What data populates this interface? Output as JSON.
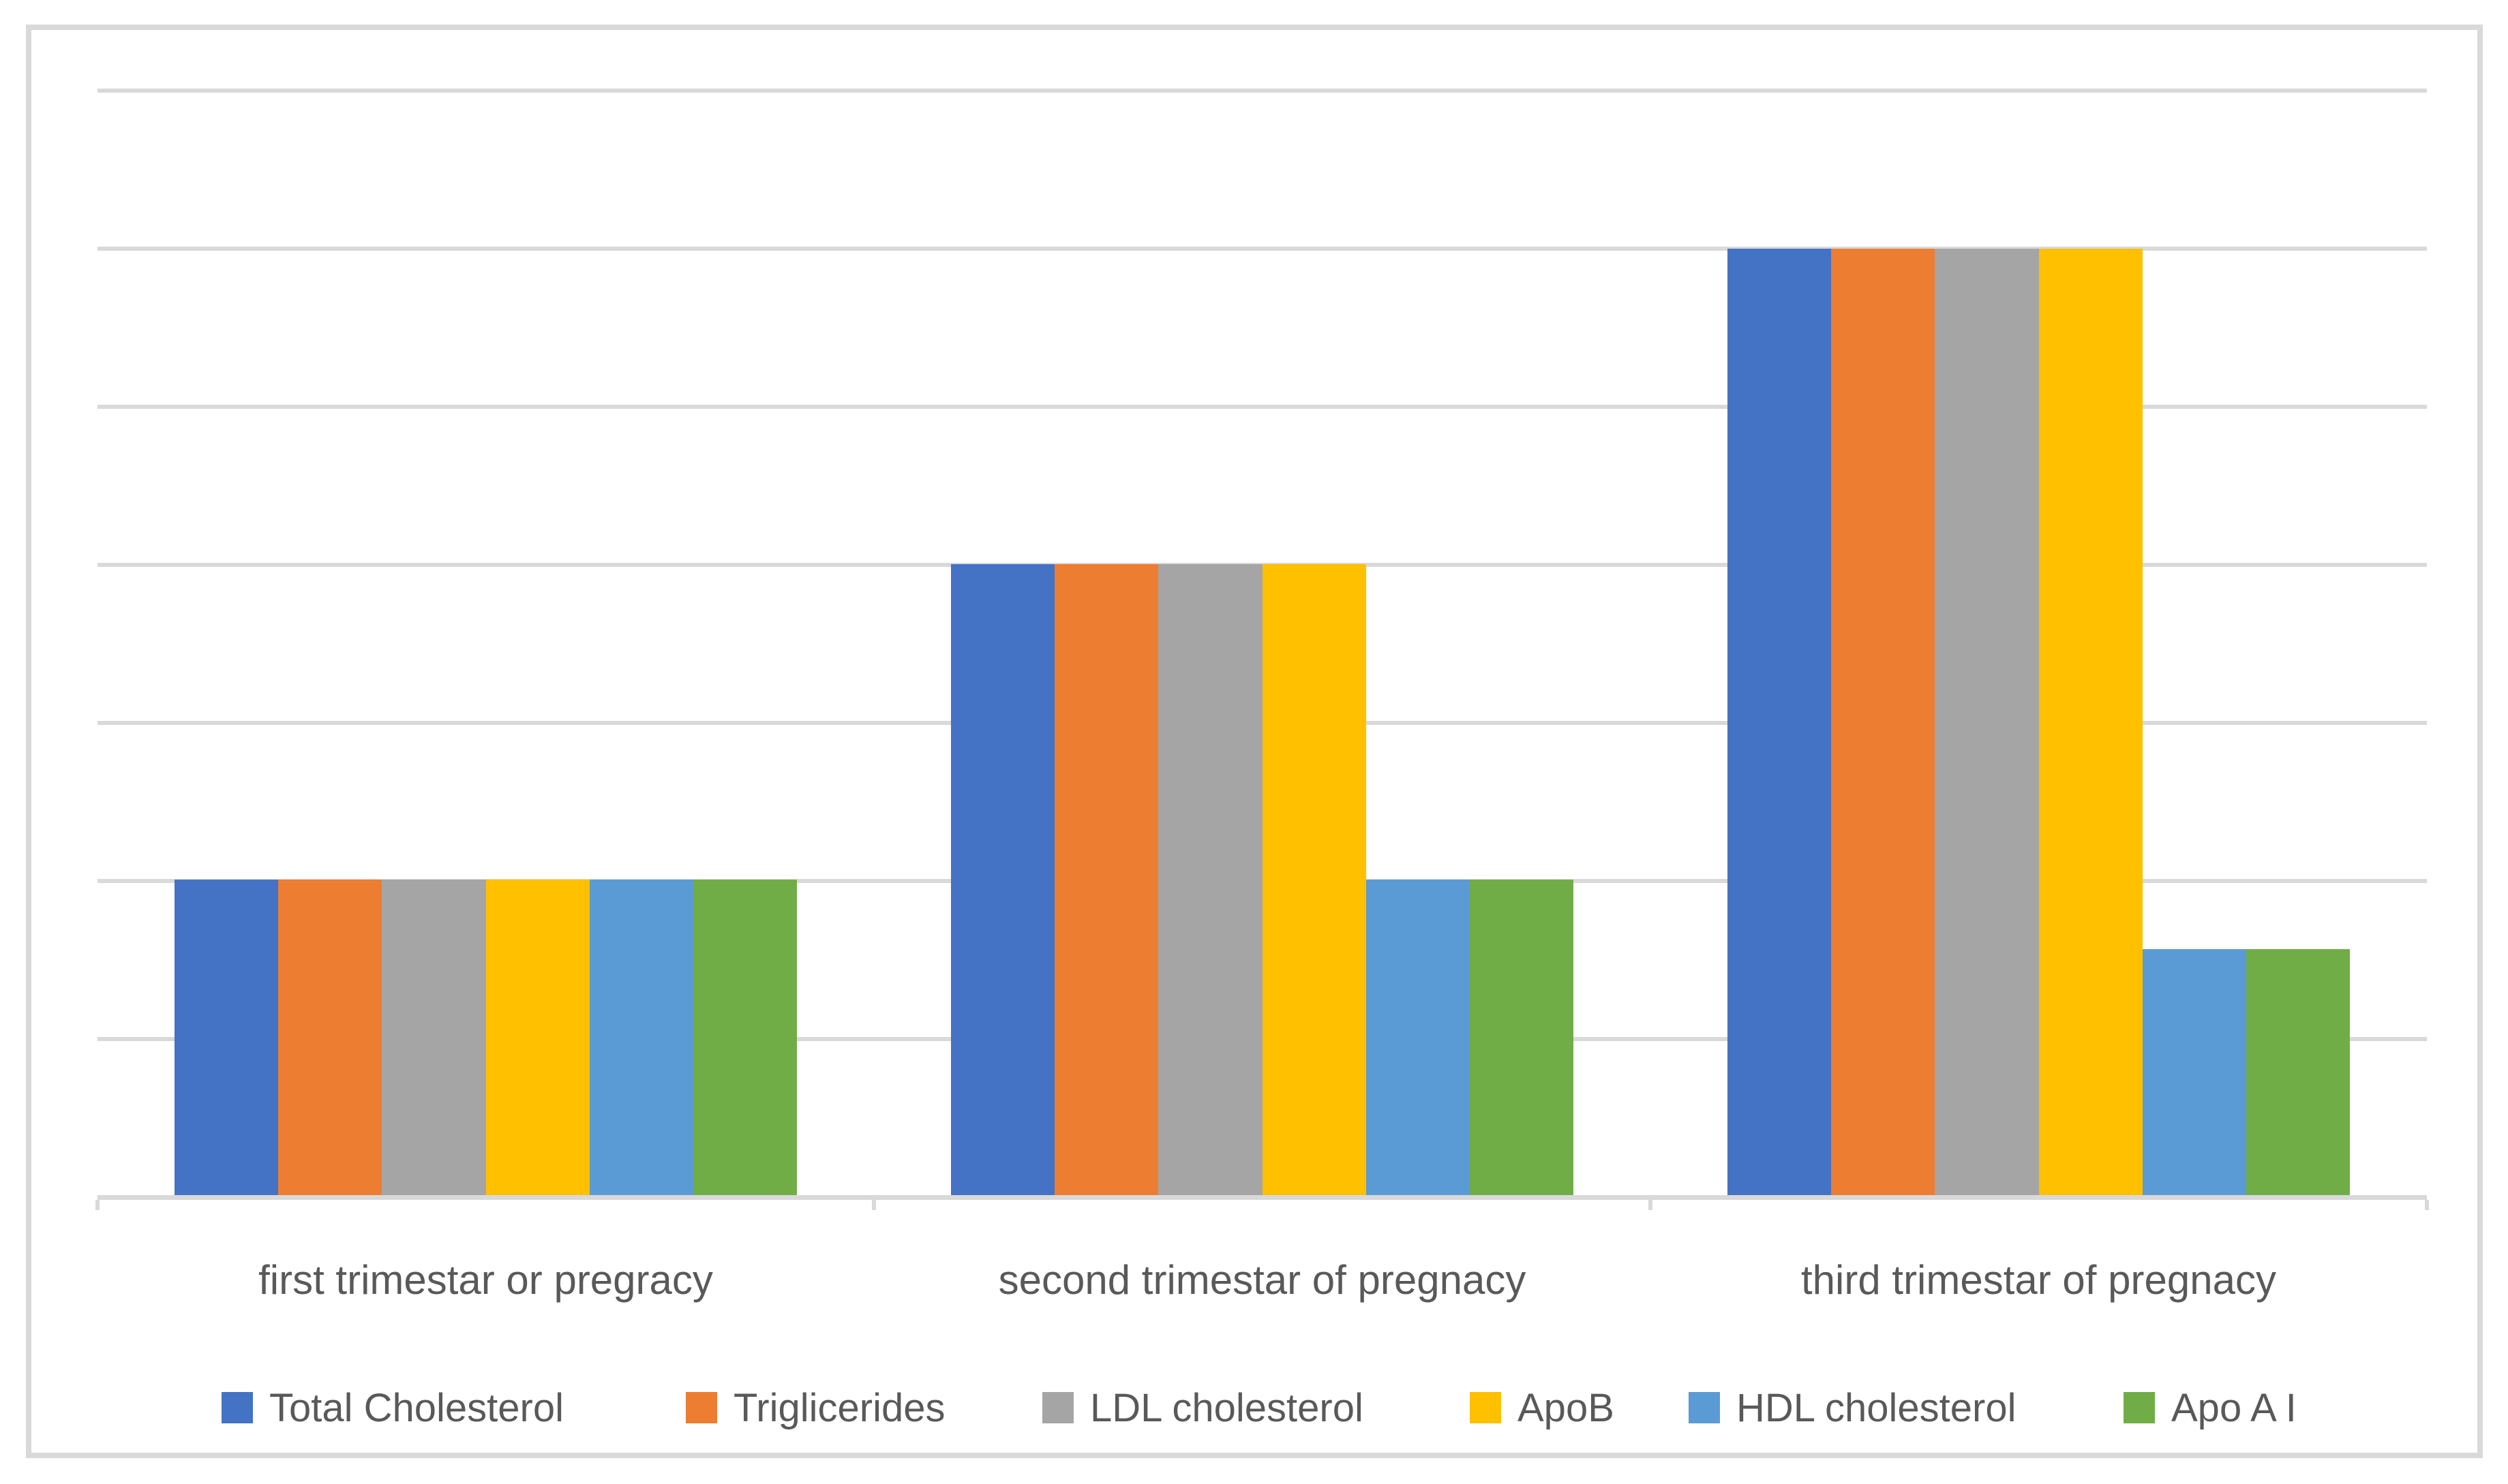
{
  "chart_data": {
    "type": "bar",
    "title": "",
    "xlabel": "",
    "ylabel": "",
    "categories": [
      "first trimestar or pregracy",
      "second trimestar of pregnacy",
      "third trimestar of pregnacy"
    ],
    "series": [
      {
        "name": "Total Cholesterol",
        "color": "#4472C4",
        "values": [
          100,
          200,
          300
        ]
      },
      {
        "name": "Triglicerides",
        "color": "#ED7D31",
        "values": [
          100,
          200,
          300
        ]
      },
      {
        "name": "LDL cholesterol",
        "color": "#A5A5A5",
        "values": [
          100,
          200,
          300
        ]
      },
      {
        "name": "ApoB",
        "color": "#FFC000",
        "values": [
          100,
          200,
          300
        ]
      },
      {
        "name": "HDL cholesterol",
        "color": "#5B9BD5",
        "values": [
          100,
          100,
          78
        ]
      },
      {
        "name": "Apo A I",
        "color": "#70AD47",
        "values": [
          100,
          100,
          78
        ]
      }
    ],
    "ylim": [
      0,
      350
    ],
    "gridline_step": 50,
    "y_axis_labels_visible": false,
    "grid": true,
    "legend_position": "bottom"
  },
  "colors": {
    "gridline": "#D9D9D9",
    "axis": "#D9D9D9",
    "chart_border": "#D9D9D9",
    "text": "#595959",
    "background": "#FFFFFF"
  }
}
